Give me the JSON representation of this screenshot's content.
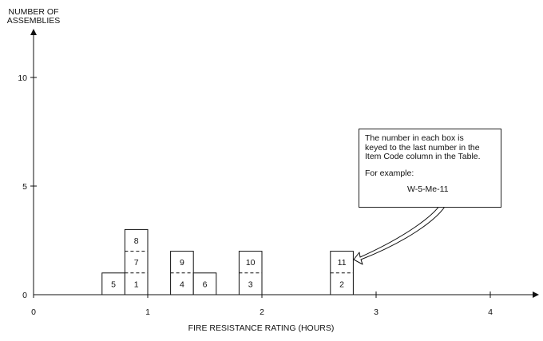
{
  "chart_data": {
    "type": "bar",
    "ylabel": [
      "NUMBER OF",
      "ASSEMBLIES"
    ],
    "xlabel": "FIRE RESISTANCE RATING (HOURS)",
    "xlim": [
      0,
      4.4
    ],
    "ylim": [
      0,
      12
    ],
    "x_ticks": [
      {
        "value": 0,
        "label": "0"
      },
      {
        "value": 1,
        "label": "1"
      },
      {
        "value": 2,
        "label": "2"
      },
      {
        "value": 3,
        "label": "3"
      },
      {
        "value": 4,
        "label": "4"
      }
    ],
    "y_ticks": [
      {
        "value": 0,
        "label": "0"
      },
      {
        "value": 5,
        "label": "5"
      },
      {
        "value": 10,
        "label": "10"
      }
    ],
    "grid": false,
    "legend": "none",
    "bin_width": 0.2,
    "bins": [
      {
        "x": 0.7,
        "boxes": [
          "5"
        ]
      },
      {
        "x": 0.9,
        "boxes": [
          "1",
          "7",
          "8"
        ]
      },
      {
        "x": 1.3,
        "boxes": [
          "4",
          "9"
        ]
      },
      {
        "x": 1.5,
        "boxes": [
          "6"
        ]
      },
      {
        "x": 1.9,
        "boxes": [
          "3",
          "10"
        ]
      },
      {
        "x": 2.7,
        "boxes": [
          "2",
          "11"
        ]
      }
    ]
  },
  "callout": {
    "lines": [
      "The number in each box is",
      "keyed to the last number in the",
      "Item Code column in the Table."
    ],
    "example_label": "For example:",
    "example_code": "W-5-Me-11"
  },
  "colors": {
    "ink": "#111111",
    "background": "#ffffff"
  }
}
